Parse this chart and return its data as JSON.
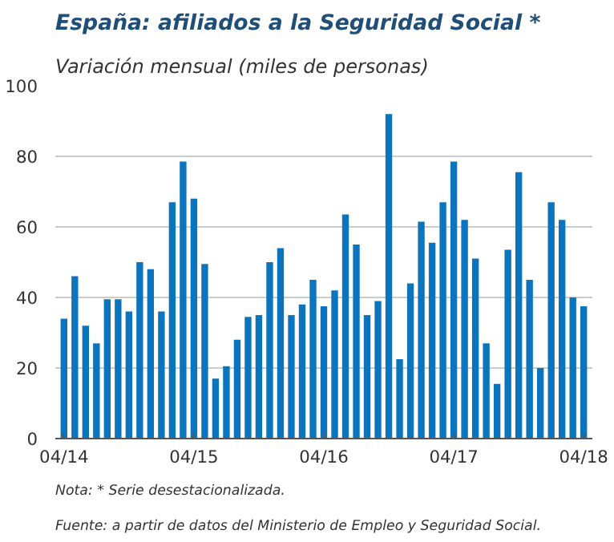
{
  "chart_data": {
    "type": "bar",
    "title": "España: afiliados a la Seguridad Social *",
    "subtitle": "Variación mensual (miles de personas)",
    "categories": [
      "04/14",
      null,
      null,
      null,
      null,
      null,
      null,
      null,
      null,
      null,
      null,
      null,
      "04/15",
      null,
      null,
      null,
      null,
      null,
      null,
      null,
      null,
      null,
      null,
      null,
      "04/16",
      null,
      null,
      null,
      null,
      null,
      null,
      null,
      null,
      null,
      null,
      null,
      "04/17",
      null,
      null,
      null,
      null,
      null,
      null,
      null,
      null,
      null,
      null,
      null,
      "04/18"
    ],
    "values": [
      34,
      46,
      32,
      27,
      39.5,
      39.5,
      36,
      50,
      48,
      36,
      67,
      78.5,
      68,
      49.5,
      17,
      20.5,
      28,
      34.5,
      35,
      50,
      54,
      35,
      38,
      45,
      37.5,
      42,
      63.5,
      55,
      35,
      39,
      92,
      22.5,
      44,
      61.5,
      55.5,
      67,
      78.5,
      62,
      51,
      27,
      15.5,
      53.5,
      75.5,
      45,
      20,
      67,
      62,
      40,
      37.5
    ],
    "color": "#0b74bd",
    "ylim": [
      0,
      100
    ],
    "yticks": [
      0,
      20,
      40,
      60,
      80,
      100
    ],
    "grid": "y",
    "annotations": [
      "Nota: * Serie desestacionalizada.",
      "Fuente: a partir de datos del Ministerio de Empleo y Seguridad Social."
    ]
  }
}
